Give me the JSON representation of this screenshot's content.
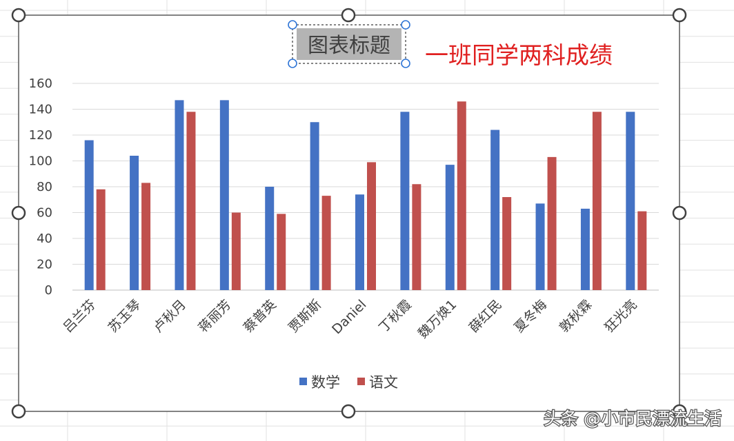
{
  "chart_data": {
    "type": "bar",
    "title": "图表标题",
    "annotation": "一班同学两科成绩",
    "xlabel": "",
    "ylabel": "",
    "categories": [
      "吕兰芬",
      "苏玉琴",
      "卢秋月",
      "蒋丽芳",
      "蔡普英",
      "贾斯斯",
      "Daniel",
      "丁秋霞",
      "魏万焕1",
      "薛红民",
      "夏冬梅",
      "敦秋霖",
      "狂光亮"
    ],
    "series": [
      {
        "name": "数学",
        "color": "#4472c4",
        "values": [
          116,
          104,
          147,
          147,
          80,
          130,
          74,
          138,
          97,
          124,
          67,
          63,
          138
        ]
      },
      {
        "name": "语文",
        "color": "#c0504d",
        "values": [
          78,
          83,
          138,
          60,
          59,
          73,
          99,
          82,
          146,
          72,
          103,
          138,
          61
        ]
      }
    ],
    "ylim": [
      0,
      160
    ],
    "yticks": [
      0,
      20,
      40,
      60,
      80,
      100,
      120,
      140,
      160
    ],
    "grid": true,
    "legend": "bottom"
  },
  "watermark": "头条 @小市民漂流生活"
}
